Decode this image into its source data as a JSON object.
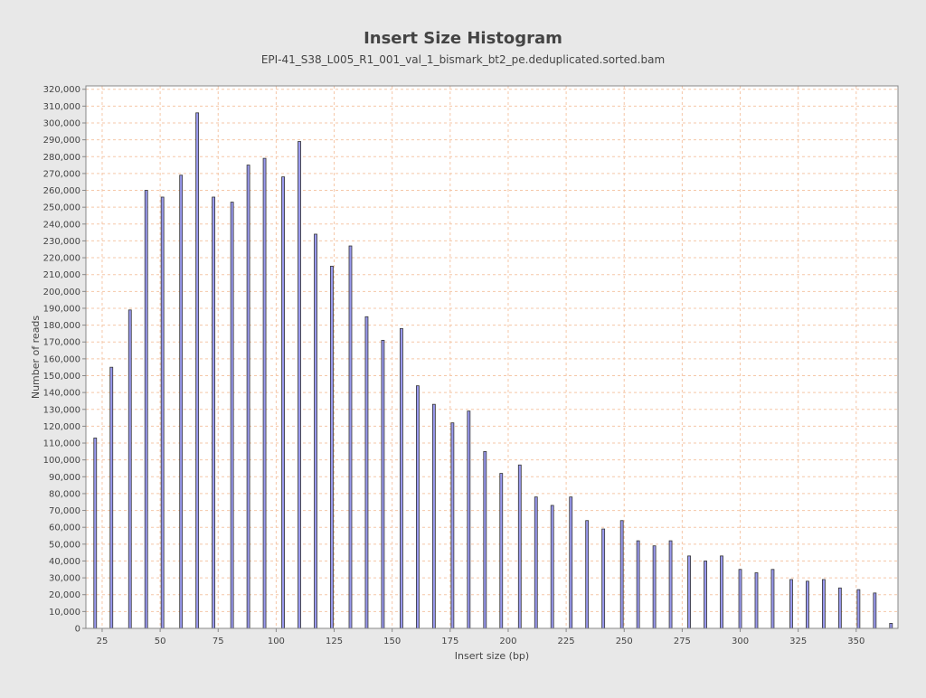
{
  "chart_data": {
    "type": "bar",
    "title": "Insert Size Histogram",
    "subtitle": "EPI-41_S38_L005_R1_001_val_1_bismark_bt2_pe.deduplicated.sorted.bam",
    "xlabel": "Insert size (bp)",
    "ylabel": "Number of reads",
    "xlim": [
      18,
      368
    ],
    "ylim": [
      0,
      322000
    ],
    "xticks": [
      25,
      50,
      75,
      100,
      125,
      150,
      175,
      200,
      225,
      250,
      275,
      300,
      325,
      350
    ],
    "yticks": [
      0,
      10000,
      20000,
      30000,
      40000,
      50000,
      60000,
      70000,
      80000,
      90000,
      100000,
      110000,
      120000,
      130000,
      140000,
      150000,
      160000,
      170000,
      180000,
      190000,
      200000,
      210000,
      220000,
      230000,
      240000,
      250000,
      260000,
      270000,
      280000,
      290000,
      300000,
      310000,
      320000
    ],
    "grid": true,
    "x": [
      22,
      29,
      37,
      44,
      51,
      59,
      66,
      73,
      81,
      88,
      95,
      103,
      110,
      117,
      124,
      132,
      139,
      146,
      154,
      161,
      168,
      176,
      183,
      190,
      197,
      205,
      212,
      219,
      227,
      234,
      241,
      249,
      256,
      263,
      270,
      278,
      285,
      292,
      300,
      307,
      314,
      322,
      329,
      336,
      343,
      351,
      358,
      365
    ],
    "values": [
      113000,
      155000,
      189000,
      260000,
      256000,
      269000,
      306000,
      256000,
      253000,
      275000,
      279000,
      268000,
      289000,
      234000,
      215000,
      227000,
      185000,
      171000,
      178000,
      144000,
      133000,
      122000,
      129000,
      105000,
      92000,
      97000,
      78000,
      73000,
      78000,
      64000,
      59000,
      64000,
      52000,
      49000,
      52000,
      43000,
      40000,
      43000,
      35000,
      33000,
      35000,
      29000,
      28000,
      29000,
      24000,
      23000,
      21000,
      3000
    ],
    "colors": {
      "background": "#e8e8e8",
      "plot_background": "#ffffff",
      "bar_fill": "#9999ee",
      "bar_edge": "#333333",
      "grid": "#f5c7a8",
      "axis": "#888888",
      "text": "#444444"
    }
  }
}
